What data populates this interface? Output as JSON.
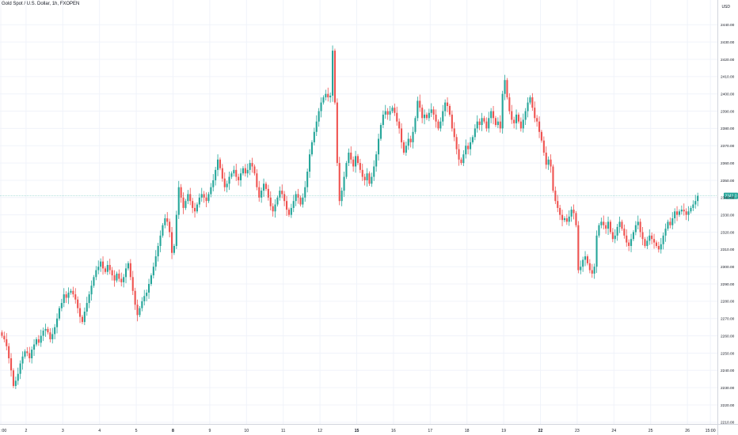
{
  "header": {
    "symbol_title": "Gold Spot / U.S. Dollar, 1h, FXOPEN"
  },
  "price_scale": {
    "currency": "USD"
  },
  "colors": {
    "up": "#26a69a",
    "down": "#ef5350",
    "grid": "#f0f3fa",
    "last_price_line": "#26a69a"
  },
  "chart_data": {
    "type": "candlestick",
    "title": "Gold Spot / U.S. Dollar, 1h, FXOPEN",
    "y_ticks": [
      2210,
      2220,
      2230,
      2240,
      2250,
      2260,
      2270,
      2280,
      2290,
      2300,
      2310,
      2320,
      2330,
      2340,
      2350,
      2360,
      2370,
      2380,
      2390,
      2400,
      2410,
      2420,
      2430,
      2440
    ],
    "y_tick_labels": [
      "2210.00",
      "2220.00",
      "2230.00",
      "2240.00",
      "2250.00",
      "2260.00",
      "2270.00",
      "2280.00",
      "2290.00",
      "2300.00",
      "2310.00",
      "2320.00",
      "2330.00",
      "2340.00",
      "2350.00",
      "2360.00",
      "2370.00",
      "2380.00",
      "2390.00",
      "2400.00",
      "2410.00",
      "2420.00",
      "2430.00",
      "2440.00"
    ],
    "ylim": [
      2205,
      2450
    ],
    "x_ticks": [
      {
        "label": ":00",
        "bar": 0,
        "bold": false
      },
      {
        "label": "2",
        "bar": 11,
        "bold": false
      },
      {
        "label": "3",
        "bar": 27,
        "bold": false
      },
      {
        "label": "4",
        "bar": 43,
        "bold": false
      },
      {
        "label": "5",
        "bar": 59,
        "bold": false
      },
      {
        "label": "8",
        "bar": 75,
        "bold": true
      },
      {
        "label": "9",
        "bar": 91,
        "bold": false
      },
      {
        "label": "10",
        "bar": 107,
        "bold": false
      },
      {
        "label": "11",
        "bar": 123,
        "bold": false
      },
      {
        "label": "12",
        "bar": 139,
        "bold": false
      },
      {
        "label": "15",
        "bar": 155,
        "bold": true
      },
      {
        "label": "16",
        "bar": 171,
        "bold": false
      },
      {
        "label": "17",
        "bar": 187,
        "bold": false
      },
      {
        "label": "18",
        "bar": 203,
        "bold": false
      },
      {
        "label": "19",
        "bar": 219,
        "bold": false
      },
      {
        "label": "22",
        "bar": 235,
        "bold": true
      },
      {
        "label": "23",
        "bar": 251,
        "bold": false
      },
      {
        "label": "24",
        "bar": 267,
        "bold": false
      },
      {
        "label": "25",
        "bar": 283,
        "bold": false
      },
      {
        "label": "26",
        "bar": 299,
        "bold": false
      },
      {
        "label": "15:00",
        "bar": 309,
        "bold": false
      }
    ],
    "last_price": 2341.0,
    "last_price_label": "2341.0",
    "grid": true,
    "closes": [
      2260,
      2258,
      2254,
      2247,
      2240,
      2231,
      2234,
      2238,
      2244,
      2248,
      2251,
      2250,
      2247,
      2252,
      2255,
      2258,
      2256,
      2260,
      2263,
      2264,
      2262,
      2258,
      2261,
      2265,
      2270,
      2276,
      2279,
      2284,
      2282,
      2285,
      2286,
      2284,
      2281,
      2276,
      2271,
      2268,
      2274,
      2279,
      2284,
      2289,
      2294,
      2298,
      2300,
      2303,
      2299,
      2297,
      2301,
      2298,
      2295,
      2292,
      2296,
      2293,
      2291,
      2294,
      2299,
      2302,
      2294,
      2286,
      2278,
      2272,
      2276,
      2280,
      2283,
      2285,
      2290,
      2295,
      2300,
      2306,
      2312,
      2318,
      2324,
      2328,
      2326,
      2320,
      2308,
      2312,
      2330,
      2346,
      2340,
      2334,
      2338,
      2342,
      2338,
      2334,
      2332,
      2336,
      2340,
      2342,
      2340,
      2338,
      2342,
      2346,
      2350,
      2356,
      2362,
      2357,
      2351,
      2346,
      2348,
      2352,
      2354,
      2356,
      2352,
      2350,
      2354,
      2357,
      2354,
      2356,
      2360,
      2358,
      2354,
      2346,
      2340,
      2344,
      2348,
      2345,
      2340,
      2335,
      2332,
      2336,
      2340,
      2344,
      2342,
      2338,
      2333,
      2330,
      2334,
      2338,
      2342,
      2340,
      2336,
      2340,
      2346,
      2355,
      2365,
      2372,
      2378,
      2384,
      2390,
      2395,
      2398,
      2400,
      2398,
      2399,
      2425,
      2395,
      2360,
      2338,
      2344,
      2352,
      2360,
      2366,
      2362,
      2358,
      2364,
      2360,
      2356,
      2352,
      2350,
      2354,
      2348,
      2352,
      2358,
      2365,
      2374,
      2382,
      2388,
      2390,
      2388,
      2390,
      2392,
      2389,
      2384,
      2380,
      2372,
      2366,
      2370,
      2374,
      2372,
      2378,
      2386,
      2396,
      2392,
      2386,
      2388,
      2386,
      2389,
      2391,
      2388,
      2384,
      2380,
      2384,
      2390,
      2395,
      2393,
      2388,
      2380,
      2375,
      2368,
      2362,
      2360,
      2365,
      2370,
      2368,
      2372,
      2375,
      2380,
      2384,
      2382,
      2386,
      2384,
      2380,
      2386,
      2390,
      2386,
      2382,
      2384,
      2380,
      2400,
      2408,
      2398,
      2390,
      2385,
      2383,
      2388,
      2384,
      2380,
      2385,
      2390,
      2395,
      2398,
      2392,
      2386,
      2384,
      2378,
      2373,
      2366,
      2359,
      2362,
      2358,
      2344,
      2338,
      2334,
      2330,
      2327,
      2328,
      2326,
      2329,
      2333,
      2331,
      2324,
      2298,
      2300,
      2304,
      2306,
      2302,
      2298,
      2296,
      2300,
      2318,
      2324,
      2326,
      2324,
      2322,
      2326,
      2320,
      2316,
      2318,
      2323,
      2326,
      2322,
      2318,
      2314,
      2312,
      2316,
      2320,
      2324,
      2326,
      2320,
      2316,
      2312,
      2315,
      2318,
      2316,
      2314,
      2312,
      2310,
      2313,
      2318,
      2322,
      2326,
      2324,
      2328,
      2332,
      2330,
      2332,
      2333,
      2332,
      2330,
      2332,
      2334,
      2336,
      2338,
      2341
    ]
  }
}
